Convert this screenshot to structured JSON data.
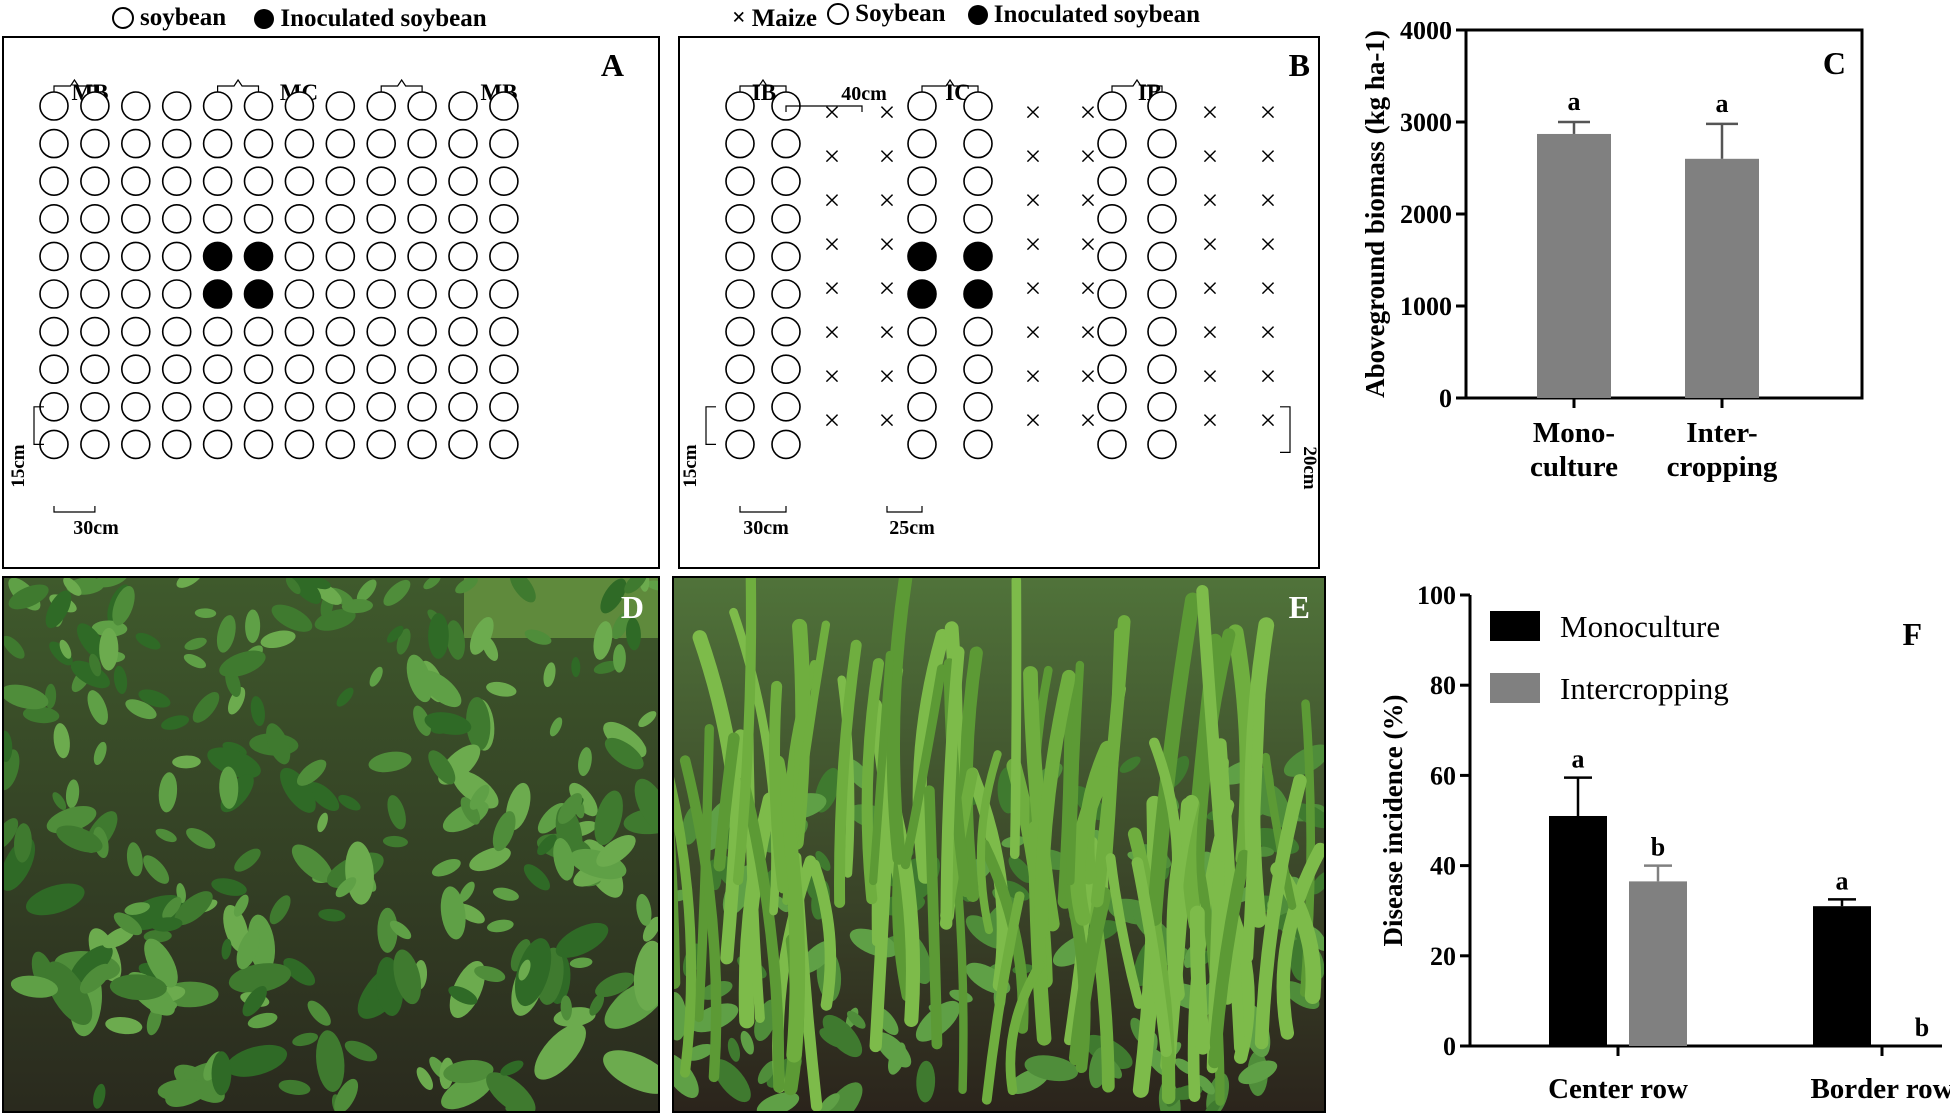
{
  "legend_a": {
    "open": "soybean",
    "filled": "Inoculated soybean"
  },
  "legend_b": {
    "cross": "Maize",
    "open": "Soybean",
    "filled": "Inoculated soybean"
  },
  "panel_a": {
    "letter": "A",
    "labels": {
      "mb_left": "MB",
      "mc": "MC",
      "mb_right": "MB",
      "row_spacing": "15cm",
      "col_spacing": "30cm"
    }
  },
  "panel_b": {
    "letter": "B",
    "labels": {
      "ib_left": "IB",
      "gap": "40cm",
      "ic": "IC",
      "ib_right": "IB",
      "row_spacing": "15cm",
      "col_spacing": "30cm",
      "maize_gap": "25cm",
      "maize_row": "20cm"
    }
  },
  "panel_d": {
    "letter": "D"
  },
  "panel_e": {
    "letter": "E"
  },
  "chart_data": [
    {
      "panel": "C",
      "type": "bar",
      "title": "",
      "ylabel": "Aboveground biomass (kg ha-1)",
      "ylim": [
        0,
        4000
      ],
      "yticks": [
        "0",
        "1000",
        "2000",
        "3000",
        "4000"
      ],
      "categories": [
        [
          "Mono-",
          "culture"
        ],
        [
          "Inter-",
          "cropping"
        ]
      ],
      "values": [
        2870,
        2600
      ],
      "errors": [
        130,
        380
      ],
      "letters": [
        "a",
        "a"
      ],
      "color": "#808080"
    },
    {
      "panel": "F",
      "type": "bar",
      "title": "",
      "ylabel": "Disease incidence (%)",
      "ylim": [
        0,
        100
      ],
      "yticks": [
        "0",
        "20",
        "40",
        "60",
        "80",
        "100"
      ],
      "categories": [
        "Center row",
        "Border row"
      ],
      "series": [
        {
          "name": "Monoculture",
          "values": [
            51,
            31
          ],
          "errors": [
            8.5,
            1.5
          ],
          "letters": [
            "a",
            "a"
          ],
          "color": "#000000"
        },
        {
          "name": "Intercropping",
          "values": [
            36.5,
            0
          ],
          "errors": [
            3.5,
            0
          ],
          "letters": [
            "b",
            "b"
          ],
          "color": "#808080"
        }
      ]
    }
  ]
}
